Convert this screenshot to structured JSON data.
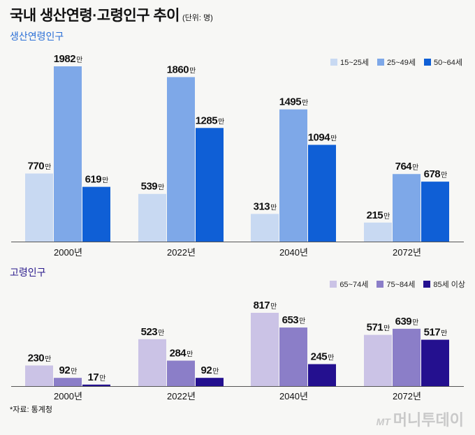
{
  "header": {
    "title": "국내 생산연령·고령인구 추이",
    "unit": "(단위: 명)"
  },
  "sections": [
    {
      "label": "생산연령인구"
    },
    {
      "label": "고령인구"
    }
  ],
  "footer": {
    "source": "*자료: 통계청",
    "watermark_prefix": "MT",
    "watermark_text": "머니투데이"
  },
  "colors": {
    "s15_25": "#c8d9f2",
    "s25_49": "#7ea8e8",
    "s50_64": "#0f5fd6",
    "s65_74": "#cbc3e6",
    "s75_84": "#8b7ec8",
    "s85": "#24108f"
  },
  "chart_data": [
    {
      "type": "bar",
      "title": "생산연령인구",
      "categories": [
        "2000년",
        "2022년",
        "2040년",
        "2072년"
      ],
      "value_suffix": "만",
      "series": [
        {
          "name": "15~25세",
          "values": [
            770,
            539,
            313,
            215
          ],
          "color": "#c8d9f2"
        },
        {
          "name": "25~49세",
          "values": [
            1982,
            1860,
            1495,
            764
          ],
          "color": "#7ea8e8"
        },
        {
          "name": "50~64세",
          "values": [
            619,
            1285,
            1094,
            678
          ],
          "color": "#0f5fd6"
        }
      ],
      "ylim": [
        0,
        1982
      ],
      "legend": "top-right",
      "grid": false
    },
    {
      "type": "bar",
      "title": "고령인구",
      "categories": [
        "2000년",
        "2022년",
        "2040년",
        "2072년"
      ],
      "value_suffix": "만",
      "series": [
        {
          "name": "65~74세",
          "values": [
            230,
            523,
            817,
            571
          ],
          "color": "#cbc3e6"
        },
        {
          "name": "75~84세",
          "values": [
            92,
            284,
            653,
            639
          ],
          "color": "#8b7ec8"
        },
        {
          "name": "85세 이상",
          "values": [
            17,
            92,
            245,
            517
          ],
          "color": "#24108f"
        }
      ],
      "ylim": [
        0,
        817
      ],
      "legend": "top-right",
      "grid": false
    }
  ]
}
